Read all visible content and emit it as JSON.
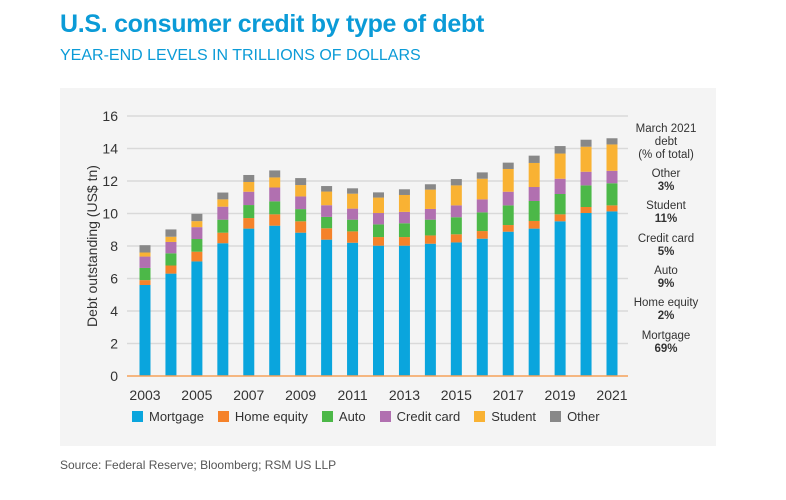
{
  "title": "U.S. consumer credit by type of debt",
  "subtitle": "YEAR-END LEVELS IN TRILLIONS OF DOLLARS",
  "source": "Source: Federal Reserve; Bloomberg; RSM US LLP",
  "annotation": {
    "header": [
      "March 2021",
      "debt",
      "(% of total)"
    ],
    "items": [
      {
        "label": "Other",
        "value": "3%"
      },
      {
        "label": "Student",
        "value": "11%"
      },
      {
        "label": "Credit card",
        "value": "5%"
      },
      {
        "label": "Auto",
        "value": "9%"
      },
      {
        "label": "Home equity",
        "value": "2%"
      },
      {
        "label": "Mortgage",
        "value": "69%"
      }
    ]
  },
  "chart_data": {
    "type": "bar",
    "stacked": true,
    "ylabel": "Debt outstanding (US$ tn)",
    "xlabel": "",
    "ylim": [
      0,
      16
    ],
    "yticks": [
      0,
      2,
      4,
      6,
      8,
      10,
      12,
      14,
      16
    ],
    "xtick_labels": [
      "2003",
      "2005",
      "2007",
      "2009",
      "2011",
      "2013",
      "2015",
      "2017",
      "2019",
      "2021"
    ],
    "grid": true,
    "legend": "bottom",
    "categories": [
      "2003",
      "2004",
      "2005",
      "2006",
      "2007",
      "2008",
      "2009",
      "2010",
      "2011",
      "2012",
      "2013",
      "2014",
      "2015",
      "2016",
      "2017",
      "2018",
      "2019",
      "2020",
      "2021"
    ],
    "series": [
      {
        "name": "Mortgage",
        "color": "#0aa5dd",
        "values": [
          5.6,
          6.3,
          7.05,
          8.17,
          9.07,
          9.25,
          8.82,
          8.39,
          8.2,
          8.02,
          8.02,
          8.14,
          8.22,
          8.45,
          8.88,
          9.07,
          9.52,
          10.03,
          10.13
        ]
      },
      {
        "name": "Home equity",
        "color": "#f5822a",
        "values": [
          0.3,
          0.5,
          0.6,
          0.65,
          0.65,
          0.7,
          0.7,
          0.7,
          0.7,
          0.53,
          0.53,
          0.51,
          0.5,
          0.47,
          0.41,
          0.47,
          0.43,
          0.37,
          0.37
        ]
      },
      {
        "name": "Auto",
        "color": "#4cb848",
        "values": [
          0.75,
          0.75,
          0.78,
          0.8,
          0.8,
          0.8,
          0.75,
          0.7,
          0.72,
          0.78,
          0.85,
          0.97,
          1.05,
          1.15,
          1.21,
          1.23,
          1.25,
          1.33,
          1.36
        ]
      },
      {
        "name": "Credit card",
        "color": "#b170b0",
        "values": [
          0.7,
          0.7,
          0.73,
          0.8,
          0.82,
          0.85,
          0.78,
          0.72,
          0.68,
          0.7,
          0.7,
          0.66,
          0.73,
          0.8,
          0.84,
          0.86,
          0.94,
          0.84,
          0.77
        ]
      },
      {
        "name": "Student",
        "color": "#f9b233",
        "values": [
          0.25,
          0.32,
          0.37,
          0.45,
          0.6,
          0.62,
          0.7,
          0.84,
          0.92,
          0.95,
          1.04,
          1.19,
          1.23,
          1.27,
          1.4,
          1.48,
          1.55,
          1.54,
          1.62
        ]
      },
      {
        "name": "Other",
        "color": "#888888",
        "values": [
          0.45,
          0.45,
          0.45,
          0.42,
          0.43,
          0.43,
          0.43,
          0.34,
          0.33,
          0.32,
          0.35,
          0.33,
          0.39,
          0.39,
          0.39,
          0.45,
          0.46,
          0.43,
          0.38
        ]
      }
    ]
  }
}
